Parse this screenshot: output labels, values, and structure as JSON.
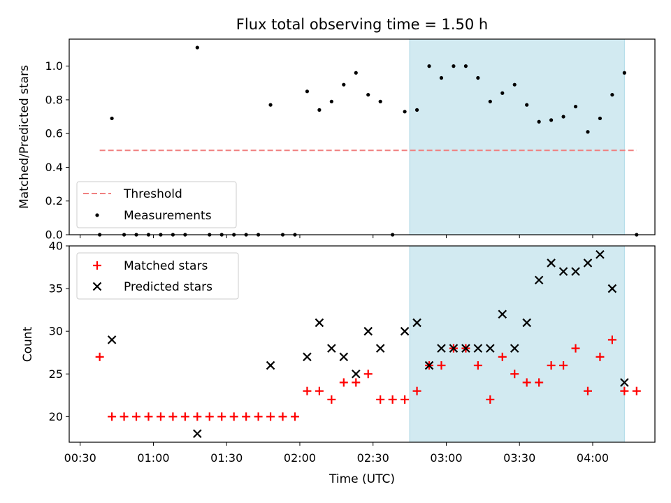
{
  "title": "Flux total observing time = 1.50 h",
  "colors": {
    "threshold": "#f08080",
    "measurement": "#000000",
    "matched": "#ff0000",
    "predicted": "#000000",
    "shade": "#add8e6"
  },
  "chart_data": [
    {
      "type": "scatter",
      "ylabel": "Matched/Predicted stars",
      "xlabel": "",
      "ylim": [
        0,
        1.16
      ],
      "yticks": [
        "0.0",
        "0.2",
        "0.4",
        "0.6",
        "0.8",
        "1.0"
      ],
      "grid": false,
      "legend": {
        "placement": "lower-left",
        "entries": [
          "Threshold",
          "Measurements"
        ]
      },
      "shaded_region": [
        "02:45",
        "04:13"
      ],
      "threshold": {
        "name": "Threshold",
        "y": 0.5,
        "x": [
          "00:38",
          "04:18"
        ]
      },
      "series": [
        {
          "name": "Measurements",
          "x": [
            "00:38",
            "00:43",
            "00:48",
            "00:53",
            "00:58",
            "01:03",
            "01:08",
            "01:13",
            "01:18",
            "01:23",
            "01:28",
            "01:33",
            "01:38",
            "01:43",
            "01:48",
            "01:53",
            "01:58",
            "02:03",
            "02:08",
            "02:13",
            "02:18",
            "02:23",
            "02:28",
            "02:33",
            "02:38",
            "02:43",
            "02:48",
            "02:53",
            "02:58",
            "03:03",
            "03:08",
            "03:13",
            "03:18",
            "03:23",
            "03:28",
            "03:33",
            "03:38",
            "03:43",
            "03:48",
            "03:53",
            "03:58",
            "04:03",
            "04:08",
            "04:13",
            "04:18"
          ],
          "y": [
            0,
            0.69,
            0,
            0,
            0,
            0,
            0,
            0,
            1.11,
            0,
            0,
            0,
            0,
            0,
            0.77,
            0,
            0,
            0.85,
            0.74,
            0.79,
            0.89,
            0.96,
            0.83,
            0.79,
            0,
            0.73,
            0.74,
            1.0,
            0.93,
            1.0,
            1.0,
            0.93,
            0.79,
            0.84,
            0.89,
            0.77,
            0.67,
            0.68,
            0.7,
            0.76,
            0.61,
            0.69,
            0.83,
            0.96,
            0
          ]
        }
      ]
    },
    {
      "type": "scatter",
      "ylabel": "Count",
      "xlabel": "Time (UTC)",
      "ylim": [
        17,
        40
      ],
      "yticks": [
        "20",
        "25",
        "30",
        "35",
        "40"
      ],
      "xticks": [
        "00:30",
        "01:00",
        "01:30",
        "02:00",
        "02:30",
        "03:00",
        "03:30",
        "04:00"
      ],
      "grid": false,
      "legend": {
        "placement": "top-left",
        "entries": [
          "Matched stars",
          "Predicted stars"
        ]
      },
      "shaded_region": [
        "02:45",
        "04:13"
      ],
      "series": [
        {
          "name": "Matched stars",
          "marker": "+",
          "x": [
            "00:38",
            "00:43",
            "00:48",
            "00:53",
            "00:58",
            "01:03",
            "01:08",
            "01:13",
            "01:18",
            "01:23",
            "01:28",
            "01:33",
            "01:38",
            "01:43",
            "01:48",
            "01:53",
            "01:58",
            "02:03",
            "02:08",
            "02:13",
            "02:18",
            "02:23",
            "02:28",
            "02:33",
            "02:38",
            "02:43",
            "02:48",
            "02:53",
            "02:58",
            "03:03",
            "03:08",
            "03:13",
            "03:18",
            "03:23",
            "03:28",
            "03:33",
            "03:38",
            "03:43",
            "03:48",
            "03:53",
            "03:58",
            "04:03",
            "04:08",
            "04:13",
            "04:18"
          ],
          "y": [
            27,
            20,
            20,
            20,
            20,
            20,
            20,
            20,
            20,
            20,
            20,
            20,
            20,
            20,
            20,
            20,
            20,
            23,
            23,
            22,
            24,
            24,
            25,
            22,
            22,
            22,
            23,
            26,
            26,
            28,
            28,
            26,
            22,
            27,
            25,
            24,
            24,
            26,
            26,
            28,
            23,
            27,
            29,
            23,
            23
          ]
        },
        {
          "name": "Predicted stars",
          "marker": "x",
          "x": [
            "00:43",
            "01:18",
            "01:48",
            "02:03",
            "02:08",
            "02:13",
            "02:18",
            "02:23",
            "02:28",
            "02:33",
            "02:43",
            "02:48",
            "02:53",
            "02:58",
            "03:03",
            "03:08",
            "03:13",
            "03:18",
            "03:23",
            "03:28",
            "03:33",
            "03:38",
            "03:43",
            "03:48",
            "03:53",
            "03:58",
            "04:03",
            "04:08",
            "04:13"
          ],
          "y": [
            29,
            18,
            26,
            27,
            31,
            28,
            27,
            25,
            30,
            28,
            30,
            31,
            26,
            28,
            28,
            28,
            28,
            28,
            32,
            28,
            31,
            36,
            38,
            37,
            37,
            38,
            39,
            35,
            24
          ]
        }
      ]
    }
  ]
}
